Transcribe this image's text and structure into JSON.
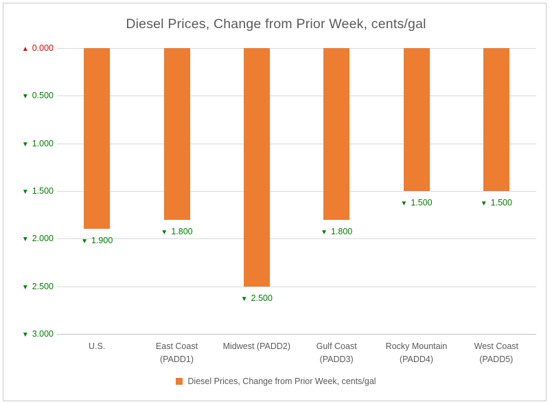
{
  "title": "Diesel Prices, Change from Prior Week, cents/gal",
  "legend": {
    "label": "Diesel Prices, Change from Prior Week, cents/gal"
  },
  "icons": {
    "up_marker": "▲",
    "down_marker": "▼",
    "legend_swatch": "orange-square"
  },
  "colors": {
    "bar": "#ED7D31",
    "up": "#E60000",
    "down": "#008000",
    "text": "#595959",
    "gridline": "#D9D9D9",
    "axis_line": "#BFBFBF",
    "border": "#C9C9C9"
  },
  "chart_data": {
    "type": "bar",
    "title": "Diesel Prices, Change from Prior Week, cents/gal",
    "xlabel": "",
    "ylabel": "",
    "grid": true,
    "legend_position": "bottom",
    "categories": [
      "U.S.",
      "East Coast (PADD1)",
      "Midwest (PADD2)",
      "Gulf Coast (PADD3)",
      "Rocky Mountain (PADD4)",
      "West Coast (PADD5)"
    ],
    "category_lines": [
      [
        "U.S."
      ],
      [
        "East Coast",
        "(PADD1)"
      ],
      [
        "Midwest (PADD2)"
      ],
      [
        "Gulf Coast",
        "(PADD3)"
      ],
      [
        "Rocky Mountain",
        "(PADD4)"
      ],
      [
        "West Coast",
        "(PADD5)"
      ]
    ],
    "series": [
      {
        "name": "Diesel Prices, Change from Prior Week, cents/gal",
        "values": [
          -1.9,
          -1.8,
          -2.5,
          -1.8,
          -1.5,
          -1.5
        ]
      }
    ],
    "data_labels": [
      "1.900",
      "1.800",
      "2.500",
      "1.800",
      "1.500",
      "1.500"
    ],
    "data_label_markers": [
      "down",
      "down",
      "down",
      "down",
      "down",
      "down"
    ],
    "y_axis": {
      "min": -3.0,
      "max": 0.0,
      "tick_interval": 0.5,
      "ticks": [
        {
          "marker": "up",
          "label": "0.000"
        },
        {
          "marker": "down",
          "label": "0.500"
        },
        {
          "marker": "down",
          "label": "1.000"
        },
        {
          "marker": "down",
          "label": "1.500"
        },
        {
          "marker": "down",
          "label": "2.000"
        },
        {
          "marker": "down",
          "label": "2.500"
        },
        {
          "marker": "down",
          "label": "3.000"
        }
      ]
    }
  }
}
